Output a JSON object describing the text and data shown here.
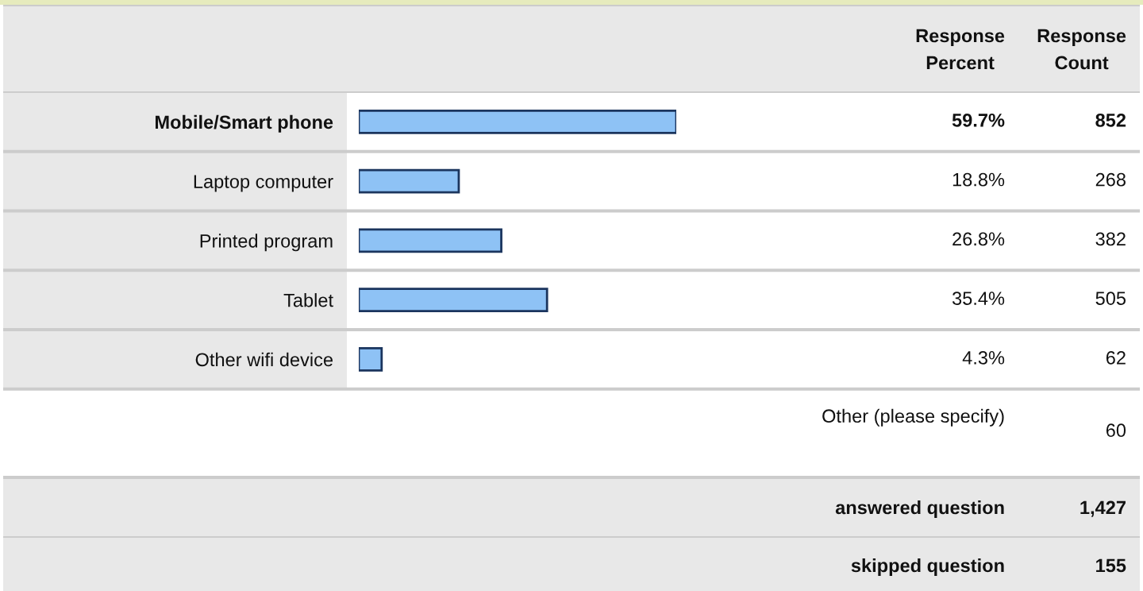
{
  "chart_data": {
    "type": "bar",
    "orientation": "horizontal",
    "categories": [
      "Mobile/Smart phone",
      "Laptop computer",
      "Printed program",
      "Tablet",
      "Other wifi device"
    ],
    "values": [
      59.7,
      18.8,
      26.8,
      35.4,
      4.3
    ],
    "value_labels": [
      "59.7%",
      "18.8%",
      "26.8%",
      "35.4%",
      "4.3%"
    ],
    "color": "#8ec2f5",
    "tick_labels": "y",
    "annotations": [
      "Response\nPercent",
      "Response\nCount",
      "852",
      "268",
      "382",
      "505",
      "62",
      "Other (please specify)",
      "60",
      "answered question",
      "1,427",
      "skipped question",
      "155"
    ]
  }
}
